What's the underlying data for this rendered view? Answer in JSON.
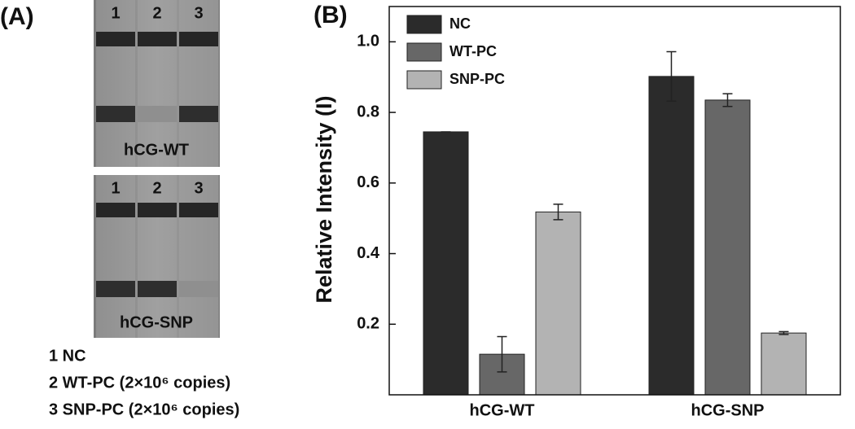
{
  "panel_a": {
    "label": "(A)",
    "strips": [
      {
        "lanes": [
          "1",
          "2",
          "3"
        ],
        "caption": "hCG-WT"
      },
      {
        "lanes": [
          "1",
          "2",
          "3"
        ],
        "caption": "hCG-SNP"
      }
    ],
    "legend": [
      "1 NC",
      "2 WT-PC  (2×10⁶ copies)",
      "3 SNP-PC  (2×10⁶ copies)"
    ]
  },
  "chart_data": {
    "type": "bar",
    "panel_label": "(B)",
    "y_label": "Relative Intensity (I)",
    "categories": [
      "hCG-WT",
      "hCG-SNP"
    ],
    "series": [
      {
        "name": "NC",
        "color": "#2b2b2b",
        "values": [
          0.745,
          0.902
        ],
        "errors": [
          0,
          0.07
        ]
      },
      {
        "name": "WT-PC",
        "color": "#676767",
        "values": [
          0.115,
          0.835
        ],
        "errors": [
          0.05,
          0.018
        ]
      },
      {
        "name": "SNP-PC",
        "color": "#b3b3b3",
        "values": [
          0.518,
          0.175
        ],
        "errors": [
          0.022,
          0.004
        ]
      }
    ],
    "ylim": [
      0,
      1.1
    ],
    "yticks": [
      0.2,
      0.4,
      0.6,
      0.8,
      {
        "value": 1,
        "label": "1.0"
      }
    ],
    "legend": "upper left"
  }
}
